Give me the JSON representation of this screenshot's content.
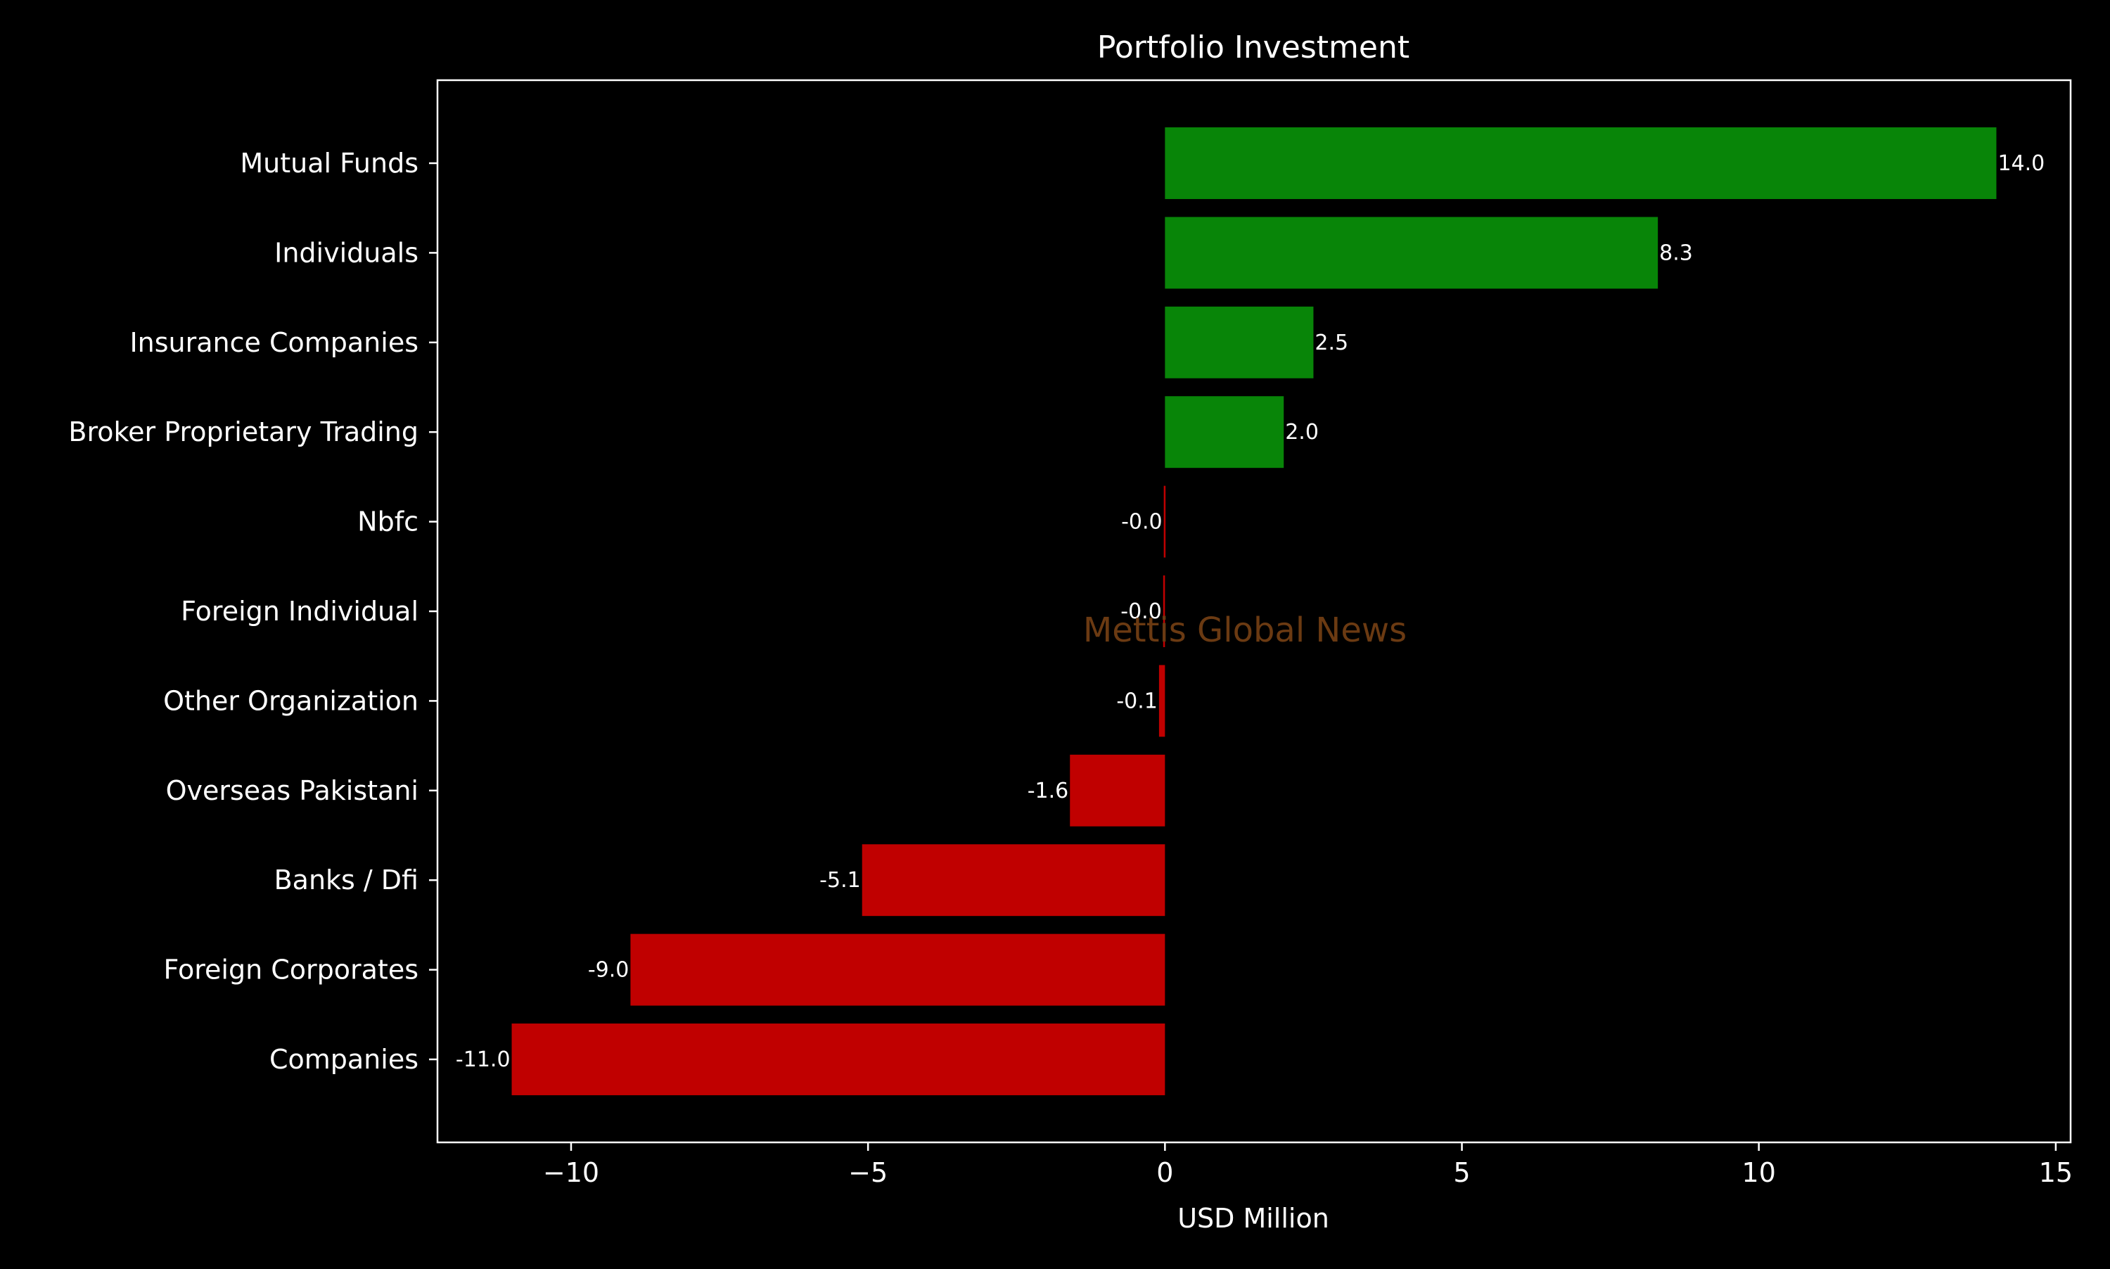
{
  "chart_data": {
    "type": "bar",
    "orientation": "horizontal",
    "title": "Portfolio Investment",
    "xlabel": "USD Million",
    "ylabel": "",
    "xlim": [
      -12.25,
      15.25
    ],
    "xticks": [
      -10,
      -5,
      0,
      5,
      10,
      15
    ],
    "xtick_labels": [
      "−10",
      "−5",
      "0",
      "5",
      "10",
      "15"
    ],
    "grid": false,
    "background": "#000000",
    "positive_color": "#088508",
    "negative_color": "#c00000",
    "watermark": "Mettis Global News",
    "watermark_color": "#6b3a12",
    "categories": [
      "Mutual Funds",
      "Individuals",
      "Insurance Companies",
      "Broker Proprietary Trading",
      "Nbfc",
      "Foreign Individual",
      "Other Organization",
      "Overseas Pakistani",
      "Banks / Dfi",
      "Foreign Corporates ",
      "Companies"
    ],
    "values": [
      14.0,
      8.3,
      2.5,
      2.0,
      -0.02,
      -0.03,
      -0.1,
      -1.6,
      -5.1,
      -9.0,
      -11.0
    ],
    "value_labels": [
      "14.0",
      "8.3",
      "2.5",
      "2.0",
      "-0.0",
      "-0.0",
      "-0.1",
      "-1.6",
      "-5.1",
      "-9.0",
      "-11.0"
    ]
  }
}
